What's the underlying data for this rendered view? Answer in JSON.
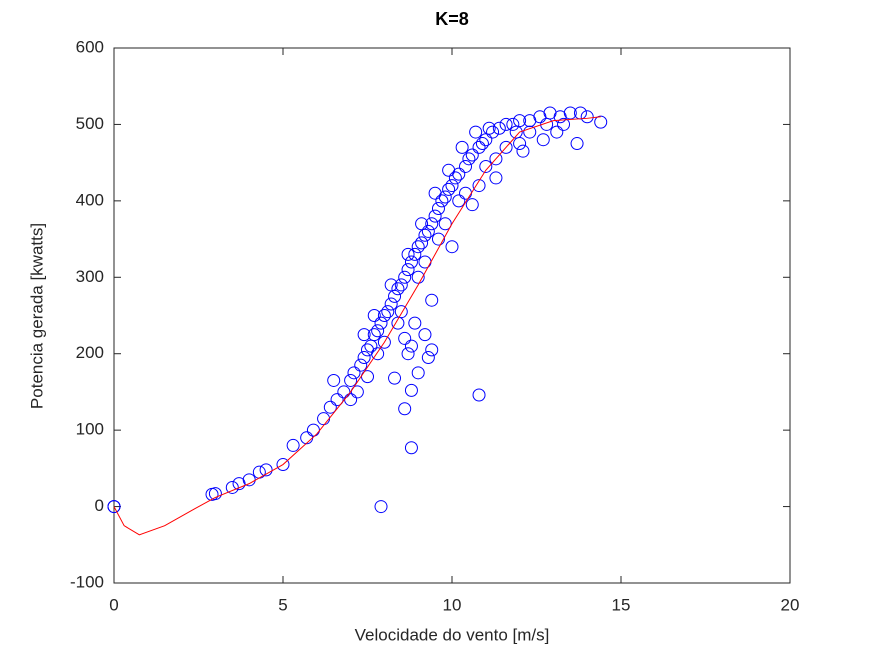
{
  "chart_data": {
    "type": "scatter",
    "title": "K=8",
    "xlabel": "Velocidade do vento [m/s]",
    "ylabel": "Potencia gerada [kwatts]",
    "xlim": [
      0,
      20
    ],
    "ylim": [
      -100,
      600
    ],
    "xticks": [
      0,
      5,
      10,
      15,
      20
    ],
    "yticks": [
      -100,
      0,
      100,
      200,
      300,
      400,
      500,
      600
    ],
    "grid": false,
    "series": [
      {
        "style": "markers",
        "color": "#0000ff",
        "x": [
          0,
          0,
          0,
          7.9,
          8.8,
          10.8,
          8.6,
          8.8,
          9.0,
          9.4,
          8.3,
          9.3,
          6.5,
          2.9,
          3.0,
          3.5,
          3.7,
          4.0,
          4.3,
          4.5,
          5.0,
          5.3,
          5.7,
          5.9,
          6.2,
          6.4,
          6.6,
          6.8,
          7.0,
          7.1,
          7.3,
          7.4,
          7.5,
          7.6,
          7.7,
          7.8,
          7.9,
          8.0,
          8.1,
          8.2,
          8.3,
          8.4,
          8.5,
          8.6,
          8.7,
          8.8,
          8.9,
          9.0,
          9.1,
          9.2,
          9.3,
          9.4,
          9.5,
          9.6,
          9.7,
          9.8,
          9.9,
          10.0,
          10.1,
          10.2,
          10.4,
          10.5,
          10.6,
          10.8,
          10.9,
          11.0,
          11.2,
          11.4,
          11.6,
          11.8,
          12.0,
          12.3,
          12.6,
          12.9,
          13.2,
          13.5,
          13.8,
          14.0,
          14.4,
          13.7,
          12.0,
          11.3,
          10.8,
          10.2,
          9.6,
          9.0,
          8.5,
          8.0,
          7.5,
          7.0,
          7.2,
          7.8,
          8.4,
          9.2,
          9.8,
          10.4,
          11.0,
          11.6,
          12.3,
          12.8,
          13.3,
          11.9,
          10.7,
          11.1,
          10.3,
          9.9,
          9.5,
          9.1,
          8.7,
          8.2,
          7.7,
          7.4,
          8.9,
          9.2,
          8.6,
          8.8,
          8.7,
          9.4,
          10.0,
          10.6,
          11.3,
          12.1,
          12.7,
          13.1
        ],
        "y": [
          0,
          0,
          0,
          0,
          77,
          146,
          128,
          152,
          175,
          205,
          168,
          195,
          165,
          16,
          17,
          25,
          30,
          35,
          45,
          48,
          55,
          80,
          90,
          100,
          115,
          130,
          140,
          150,
          165,
          175,
          185,
          195,
          205,
          210,
          225,
          230,
          240,
          250,
          255,
          265,
          275,
          285,
          290,
          300,
          310,
          320,
          330,
          340,
          345,
          355,
          360,
          370,
          380,
          390,
          400,
          405,
          415,
          420,
          430,
          435,
          445,
          455,
          460,
          470,
          475,
          480,
          490,
          495,
          500,
          500,
          505,
          505,
          510,
          515,
          510,
          515,
          515,
          510,
          503,
          475,
          475,
          455,
          420,
          400,
          350,
          300,
          255,
          215,
          170,
          140,
          150,
          200,
          240,
          320,
          370,
          410,
          445,
          470,
          490,
          500,
          500,
          490,
          490,
          495,
          470,
          440,
          410,
          370,
          330,
          290,
          250,
          225,
          240,
          225,
          220,
          210,
          200,
          270,
          340,
          395,
          430,
          465,
          480,
          490
        ]
      },
      {
        "style": "line",
        "color": "#ff0000",
        "x": [
          0,
          0.3,
          0.75,
          1.5,
          2.3,
          3,
          4,
          5,
          6,
          7,
          8,
          9,
          10,
          11,
          12,
          13,
          14,
          14.4
        ],
        "y": [
          0,
          -25,
          -37,
          -25,
          -5,
          12,
          30,
          55,
          95,
          150,
          215,
          290,
          370,
          440,
          490,
          505,
          508,
          510
        ]
      }
    ]
  }
}
